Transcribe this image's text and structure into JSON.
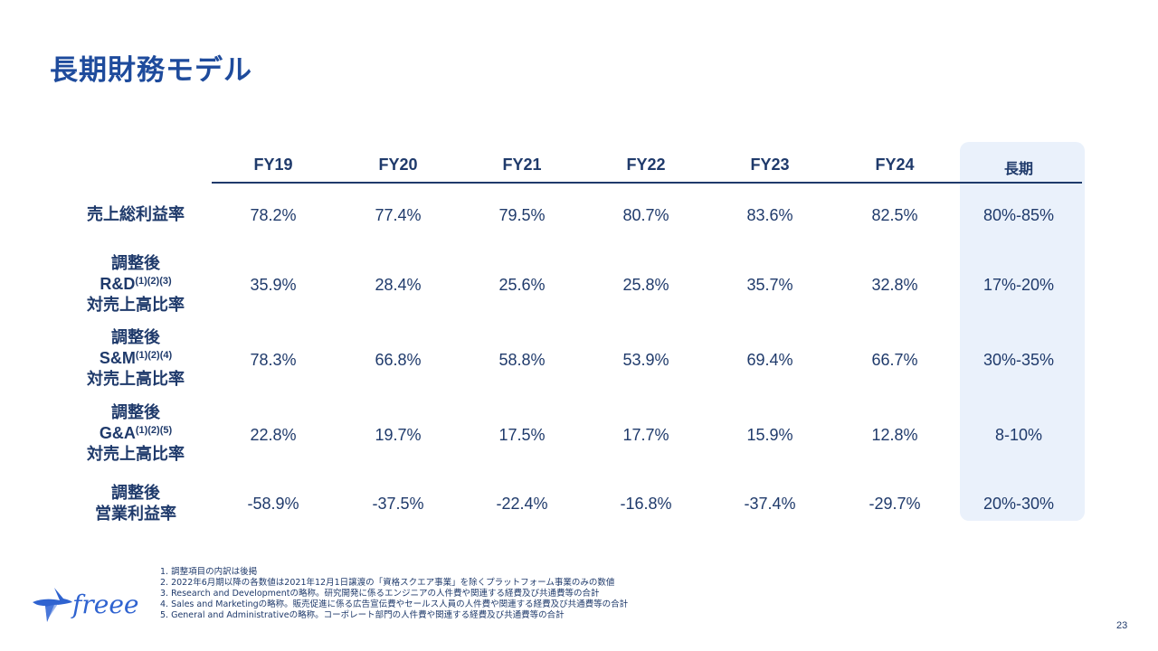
{
  "title": "長期財務モデル",
  "columns": [
    "FY19",
    "FY20",
    "FY21",
    "FY22",
    "FY23",
    "FY24",
    "長期"
  ],
  "rows": [
    {
      "label_lines": [
        "売上総利益率"
      ],
      "values": [
        "78.2%",
        "77.4%",
        "79.5%",
        "80.7%",
        "83.6%",
        "82.5%",
        "80%-85%"
      ]
    },
    {
      "label_top": "調整後",
      "label_abbr": "R&D",
      "label_sup": "(1)(2)(3)",
      "label_bottom": "対売上高比率",
      "values": [
        "35.9%",
        "28.4%",
        "25.6%",
        "25.8%",
        "35.7%",
        "32.8%",
        "17%-20%"
      ]
    },
    {
      "label_top": "調整後",
      "label_abbr": "S&M",
      "label_sup": "(1)(2)(4)",
      "label_bottom": "対売上高比率",
      "values": [
        "78.3%",
        "66.8%",
        "58.8%",
        "53.9%",
        "69.4%",
        "66.7%",
        "30%-35%"
      ]
    },
    {
      "label_top": "調整後",
      "label_abbr": "G&A",
      "label_sup": "(1)(2)(5)",
      "label_bottom": "対売上高比率",
      "values": [
        "22.8%",
        "19.7%",
        "17.5%",
        "17.7%",
        "15.9%",
        "12.8%",
        "8-10%"
      ]
    },
    {
      "label_lines": [
        "調整後",
        "営業利益率"
      ],
      "values": [
        "-58.9%",
        "-37.5%",
        "-22.4%",
        "-16.8%",
        "-37.4%",
        "-29.7%",
        "20%-30%"
      ]
    }
  ],
  "notes": [
    "1.  調整項目の内訳は後掲",
    "2.  2022年6月期以降の各数値は2021年12月1日譲渡の「資格スクエア事業」を除くプラットフォーム事業のみの数値",
    "3.  Research and Developmentの略称。研究開発に係るエンジニアの人件費や関連する経費及び共通費等の合計",
    "4.  Sales and Marketingの略称。販売促進に係る広告宣伝費やセールス人員の人件費や関連する経費及び共通費等の合計",
    "5.  General and Administrativeの略称。コーポレート部門の人件費や関連する経費及び共通費等の合計"
  ],
  "logo": {
    "text": "freee",
    "icon": "bird-logo-icon"
  },
  "page_number": "23",
  "colors": {
    "primary": "#1f3a6b",
    "title": "#1e4b9c",
    "highlight": "#eaf1fb",
    "logo": "#2f63d0"
  }
}
